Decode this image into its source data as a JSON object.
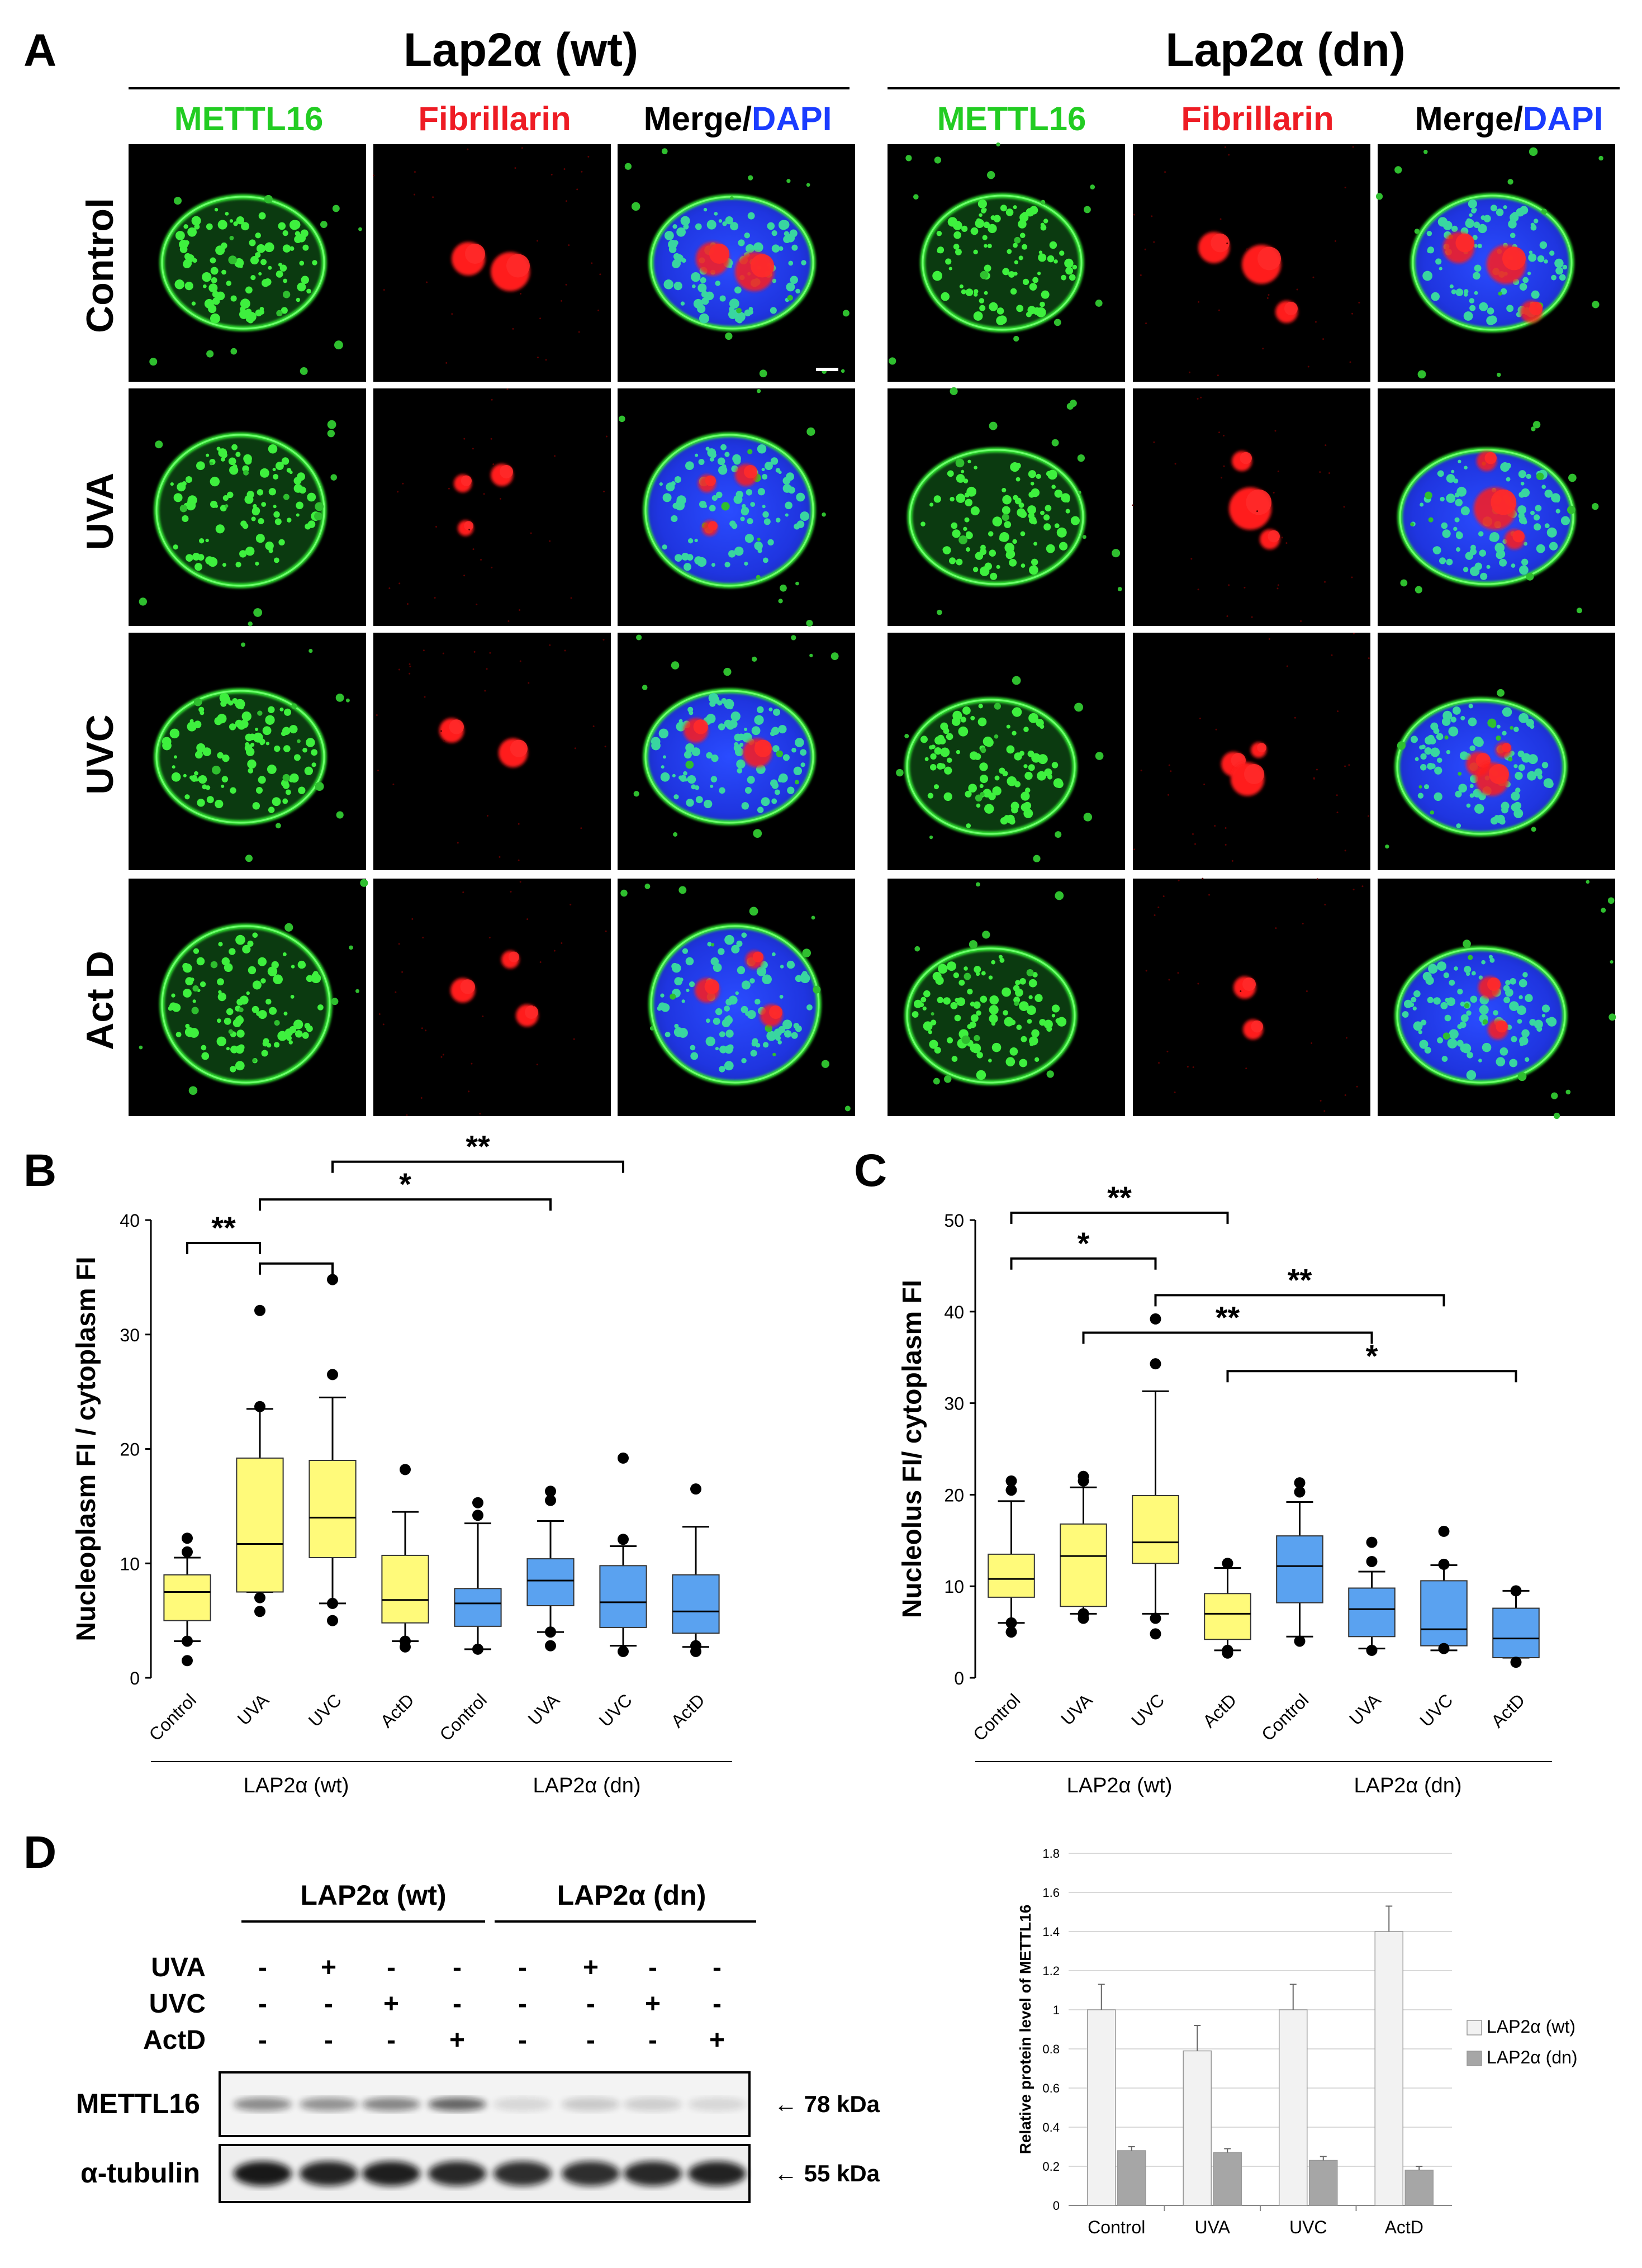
{
  "panel_letters": {
    "a": "A",
    "b": "B",
    "c": "C",
    "d": "D"
  },
  "panel_a": {
    "group_titles": [
      "Lap2α (wt)",
      "Lap2α (dn)"
    ],
    "channel_headers": {
      "green": "METTL16",
      "red": "Fibrillarin",
      "merge": "Merge/",
      "dapi": "DAPI"
    },
    "row_labels": [
      "Control",
      "UVA",
      "UVC",
      "Act D"
    ],
    "colors": {
      "green": "#22cc22",
      "red": "#ee1c24",
      "blue": "#1a3cff",
      "black": "#000000"
    }
  },
  "chart_data": [
    {
      "panel": "B",
      "type": "box",
      "ylabel": "Nucleoplasm FI / cytoplasm FI",
      "ylim": [
        0,
        40
      ],
      "yticks": [
        0,
        10,
        20,
        30,
        40
      ],
      "categories": [
        "Control",
        "UVA",
        "UVC",
        "ActD",
        "Control",
        "UVA",
        "UVC",
        "ActD"
      ],
      "groups": [
        {
          "label": "LAP2α (wt)",
          "color": "#fffa7a"
        },
        {
          "label": "LAP2α (dn)",
          "color": "#5aa2f0"
        }
      ],
      "boxes": [
        {
          "min": 3.2,
          "q1": 5.0,
          "median": 7.5,
          "q3": 9.0,
          "max": 10.5,
          "outliers": [
            1.5,
            3.2,
            11.0,
            12.2
          ]
        },
        {
          "min": 7.5,
          "q1": 7.5,
          "median": 11.7,
          "q3": 19.2,
          "max": 23.5,
          "outliers": [
            5.8,
            7.0,
            23.7,
            32.1
          ]
        },
        {
          "min": 6.5,
          "q1": 10.5,
          "median": 14.0,
          "q3": 19.0,
          "max": 24.5,
          "outliers": [
            5.0,
            6.5,
            26.5,
            34.8
          ]
        },
        {
          "min": 3.2,
          "q1": 4.8,
          "median": 6.8,
          "q3": 10.7,
          "max": 14.5,
          "outliers": [
            2.7,
            3.2,
            18.2
          ]
        },
        {
          "min": 2.5,
          "q1": 4.5,
          "median": 6.5,
          "q3": 7.8,
          "max": 13.5,
          "outliers": [
            2.5,
            14.2,
            15.3
          ]
        },
        {
          "min": 4.0,
          "q1": 6.3,
          "median": 8.5,
          "q3": 10.4,
          "max": 13.7,
          "outliers": [
            2.8,
            4.0,
            15.5,
            16.3
          ]
        },
        {
          "min": 2.8,
          "q1": 4.4,
          "median": 6.6,
          "q3": 9.8,
          "max": 11.5,
          "outliers": [
            2.3,
            12.1,
            19.2
          ]
        },
        {
          "min": 2.7,
          "q1": 3.9,
          "median": 5.8,
          "q3": 9.0,
          "max": 13.2,
          "outliers": [
            2.3,
            2.8,
            16.5
          ]
        }
      ],
      "significance": [
        {
          "from": 0,
          "to": 1,
          "label": "**",
          "y": 38.0
        },
        {
          "from": 1,
          "to": 2,
          "label": "",
          "y": 36.2
        },
        {
          "from": 1,
          "to": 5,
          "label": "*",
          "y": 41.8
        },
        {
          "from": 2,
          "to": 6,
          "label": "**",
          "y": 45.1
        }
      ]
    },
    {
      "panel": "C",
      "type": "box",
      "ylabel": "Nucleolus FI/ cytoplasm FI",
      "ylim": [
        0,
        50
      ],
      "yticks": [
        0,
        10,
        20,
        30,
        40,
        50
      ],
      "categories": [
        "Control",
        "UVA",
        "UVC",
        "ActD",
        "Control",
        "UVA",
        "UVC",
        "ActD"
      ],
      "groups": [
        {
          "label": "LAP2α (wt)",
          "color": "#fffa7a"
        },
        {
          "label": "LAP2α (dn)",
          "color": "#5aa2f0"
        }
      ],
      "boxes": [
        {
          "min": 6.0,
          "q1": 8.8,
          "median": 10.8,
          "q3": 13.5,
          "max": 19.3,
          "outliers": [
            5.0,
            6.0,
            20.5,
            21.5
          ]
        },
        {
          "min": 7.0,
          "q1": 7.8,
          "median": 13.3,
          "q3": 16.8,
          "max": 20.8,
          "outliers": [
            6.5,
            7.0,
            21.5,
            22.0
          ]
        },
        {
          "min": 7.0,
          "q1": 12.5,
          "median": 14.8,
          "q3": 19.9,
          "max": 31.3,
          "outliers": [
            4.8,
            6.5,
            34.3,
            39.2
          ]
        },
        {
          "min": 3.0,
          "q1": 4.2,
          "median": 7.0,
          "q3": 9.2,
          "max": 12.0,
          "outliers": [
            2.7,
            3.0,
            12.5
          ]
        },
        {
          "min": 4.5,
          "q1": 8.2,
          "median": 12.2,
          "q3": 15.5,
          "max": 19.2,
          "outliers": [
            4.0,
            20.3,
            21.3
          ]
        },
        {
          "min": 3.2,
          "q1": 4.5,
          "median": 7.5,
          "q3": 9.8,
          "max": 11.6,
          "outliers": [
            3.0,
            12.7,
            14.8
          ]
        },
        {
          "min": 3.0,
          "q1": 3.5,
          "median": 5.3,
          "q3": 10.6,
          "max": 12.3,
          "outliers": [
            3.2,
            12.4,
            16.0
          ]
        },
        {
          "min": 2.2,
          "q1": 2.2,
          "median": 4.3,
          "q3": 7.6,
          "max": 9.5,
          "outliers": [
            1.7,
            9.5
          ]
        }
      ],
      "significance": [
        {
          "from": 0,
          "to": 3,
          "label": "**",
          "y": 50.8
        },
        {
          "from": 0,
          "to": 2,
          "label": "*",
          "y": 45.8
        },
        {
          "from": 2,
          "to": 6,
          "label": "**",
          "y": 41.8
        },
        {
          "from": 1,
          "to": 5,
          "label": "**",
          "y": 37.7
        },
        {
          "from": 3,
          "to": 7,
          "label": "*",
          "y": 33.5
        }
      ]
    },
    {
      "panel": "D",
      "type": "bar",
      "ylabel": "Relative protein level of METTL16",
      "ylim": [
        0,
        1.8
      ],
      "yticks": [
        "0",
        "0.2",
        "0.4",
        "0.6",
        "0.8",
        "1",
        "1.2",
        "1.4",
        "1.6",
        "1.8"
      ],
      "categories": [
        "Control",
        "UVA",
        "UVC",
        "ActD"
      ],
      "series": [
        {
          "name": "LAP2α (wt)",
          "values": [
            1.0,
            0.79,
            1.0,
            1.4
          ],
          "errors": [
            0.13,
            0.13,
            0.13,
            0.13
          ],
          "color": "#f2f2f2"
        },
        {
          "name": "LAP2α (dn)",
          "values": [
            0.28,
            0.27,
            0.23,
            0.18
          ],
          "errors": [
            0.02,
            0.02,
            0.02,
            0.02
          ],
          "color": "#a6a6a6"
        }
      ],
      "grid": true,
      "legend": "right"
    }
  ],
  "panel_d_blot": {
    "group_headers": [
      "LAP2α (wt)",
      "LAP2α (dn)"
    ],
    "treatment_labels": [
      "UVA",
      "UVC",
      "ActD"
    ],
    "treatment_matrix": [
      [
        "-",
        "+",
        "-",
        "-",
        "-",
        "+",
        "-",
        "-"
      ],
      [
        "-",
        "-",
        "+",
        "-",
        "-",
        "-",
        "+",
        "-"
      ],
      [
        "-",
        "-",
        "-",
        "+",
        "-",
        "-",
        "-",
        "+"
      ]
    ],
    "bands": [
      {
        "label": "METTL16",
        "marker": "← 78 kDa",
        "intensity": [
          0.45,
          0.42,
          0.48,
          0.62,
          0.12,
          0.18,
          0.16,
          0.12
        ]
      },
      {
        "label": "α-tubulin",
        "marker": "← 55 kDa",
        "intensity": [
          0.95,
          0.9,
          0.92,
          0.88,
          0.85,
          0.85,
          0.88,
          0.9
        ]
      }
    ]
  }
}
